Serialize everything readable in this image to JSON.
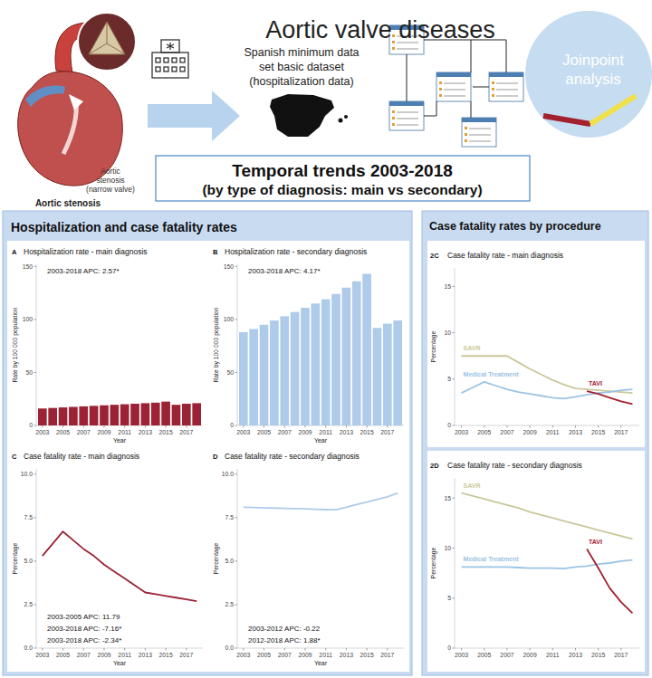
{
  "header": {
    "title": "Aortic valve diseases",
    "illustration_label": [
      "Aortic",
      "stenosis",
      "(narrow valve)"
    ],
    "illustration_caption": "Aortic stenosis",
    "source": [
      "Spanish minimum data",
      "set basic dataset",
      "(hospitalization data)"
    ],
    "method": [
      "Joinpoint",
      "analysis"
    ],
    "banner": [
      "Temporal trends 2003-2018",
      "(by type of diagnosis: main vs secondary)"
    ]
  },
  "panels": [
    {
      "title": "Hospitalization and case fatality rates"
    },
    {
      "title": "Case fatality rates by procedure"
    }
  ],
  "chart_data": [
    {
      "type": "bar",
      "panel_label": "A",
      "title": "Hospitalization rate - main diagnosis",
      "annotations": [
        "2003-2018 APC: 2.57*"
      ],
      "x_label": "Year",
      "y_label": "Rate by 100 000 population",
      "x": [
        2003,
        2004,
        2005,
        2006,
        2007,
        2008,
        2009,
        2010,
        2011,
        2012,
        2013,
        2014,
        2015,
        2016,
        2017,
        2018
      ],
      "values": [
        16,
        16.5,
        17,
        17.5,
        18,
        18.5,
        19,
        19.5,
        20,
        20.5,
        21,
        21.5,
        22.5,
        19.5,
        20.5,
        21
      ],
      "color": "#9b2335",
      "xlim": [
        2002.4,
        2018.6
      ],
      "ylim": [
        0,
        152
      ],
      "yticks": [
        0,
        50,
        100,
        150
      ],
      "xticks": [
        2003,
        2005,
        2007,
        2009,
        2011,
        2013,
        2015,
        2017
      ]
    },
    {
      "type": "bar",
      "panel_label": "B",
      "title": "Hospitalization rate - secondary diagnosis",
      "annotations": [
        "2003-2018 APC: 4.17*"
      ],
      "x_label": "Year",
      "y_label": "Rate by 100 000 population",
      "x": [
        2003,
        2004,
        2005,
        2006,
        2007,
        2008,
        2009,
        2010,
        2011,
        2012,
        2013,
        2014,
        2015,
        2016,
        2017,
        2018
      ],
      "values": [
        88,
        91,
        95,
        99,
        103,
        107,
        111,
        115,
        119,
        124,
        130,
        136,
        143,
        92,
        96,
        99
      ],
      "color": "#aecbea",
      "xlim": [
        2002.4,
        2018.6
      ],
      "ylim": [
        0,
        152
      ],
      "yticks": [
        0,
        50,
        100,
        150
      ],
      "xticks": [
        2003,
        2005,
        2007,
        2009,
        2011,
        2013,
        2015,
        2017
      ]
    },
    {
      "type": "line",
      "panel_label": "C",
      "title": "Case fatality rate - main diagnosis",
      "annotations": [
        "2003-2005 APC: 11.79",
        "2003-2018 APC: -7.16*",
        "2003-2018 APC: -2.34*"
      ],
      "x_label": "Year",
      "y_label": "Percentage",
      "x": [
        2003,
        2004,
        2005,
        2006,
        2007,
        2008,
        2009,
        2010,
        2011,
        2012,
        2013,
        2014,
        2015,
        2016,
        2017,
        2018
      ],
      "values": [
        5.3,
        6.0,
        6.7,
        6.2,
        5.7,
        5.3,
        4.8,
        4.4,
        4.0,
        3.6,
        3.2,
        3.1,
        3.0,
        2.9,
        2.8,
        2.7
      ],
      "color": "#9b2335",
      "xlim": [
        2002.4,
        2018.6
      ],
      "ylim": [
        0,
        10.3
      ],
      "yticks": [
        {
          "value": 0,
          "label": "0.0"
        },
        {
          "value": 2.5,
          "label": "2.5"
        },
        {
          "value": 5,
          "label": "5.0"
        },
        {
          "value": 7.5,
          "label": "7.5"
        },
        {
          "value": 10,
          "label": "10.0"
        }
      ],
      "xticks": [
        2003,
        2005,
        2007,
        2009,
        2011,
        2013,
        2015,
        2017
      ]
    },
    {
      "type": "line",
      "panel_label": "D",
      "title": "Case fatality rate - secondary diagnosis",
      "annotations": [
        "2003-2012 APC: -0.22",
        "2012-2018 APC: 1.88*"
      ],
      "x_label": "Year",
      "y_label": "Percentage",
      "x": [
        2003,
        2004,
        2005,
        2006,
        2007,
        2008,
        2009,
        2010,
        2011,
        2012,
        2013,
        2014,
        2015,
        2016,
        2017,
        2018
      ],
      "values": [
        8.1,
        8.08,
        8.06,
        8.05,
        8.03,
        8.02,
        8.0,
        7.98,
        7.96,
        7.95,
        8.1,
        8.25,
        8.4,
        8.55,
        8.7,
        8.9
      ],
      "color": "#aecbea",
      "xlim": [
        2002.4,
        2018.6
      ],
      "ylim": [
        0,
        10.3
      ],
      "yticks": [
        {
          "value": 0,
          "label": "0.0"
        },
        {
          "value": 2.5,
          "label": "2.5"
        },
        {
          "value": 5,
          "label": "5.0"
        },
        {
          "value": 7.5,
          "label": "7.5"
        },
        {
          "value": 10,
          "label": "10.0"
        }
      ],
      "xticks": [
        2003,
        2005,
        2007,
        2009,
        2011,
        2013,
        2015,
        2017
      ]
    },
    {
      "type": "line",
      "panel_label": "2C",
      "title": "Case fatality rate - main diagnosis",
      "y_label": "Percentage",
      "x": [
        2003,
        2004,
        2005,
        2006,
        2007,
        2008,
        2009,
        2010,
        2011,
        2012,
        2013,
        2014,
        2015,
        2016,
        2017,
        2018
      ],
      "series": [
        {
          "name": "SAVR",
          "color": "#c9c89b",
          "values": [
            7.5,
            7.5,
            7.5,
            7.5,
            7.5,
            6.8,
            6.1,
            5.5,
            4.9,
            4.4,
            4.0,
            3.9,
            3.8,
            3.7,
            3.6,
            3.5
          ]
        },
        {
          "name": "Medical Treatment",
          "color": "#9cc3e4",
          "values": [
            3.5,
            4.1,
            4.7,
            4.3,
            3.9,
            3.6,
            3.4,
            3.2,
            3.0,
            2.9,
            3.1,
            3.3,
            3.5,
            3.6,
            3.8,
            3.9
          ]
        },
        {
          "name": "TAVI",
          "color": "#a3202f",
          "values": [
            null,
            null,
            null,
            null,
            null,
            null,
            null,
            null,
            null,
            null,
            null,
            3.7,
            3.4,
            3.0,
            2.6,
            2.3
          ]
        }
      ],
      "xlim": [
        2002.4,
        2018.6
      ],
      "ylim": [
        0,
        17
      ],
      "yticks": [
        0,
        5,
        10,
        15
      ],
      "xticks": [
        2003,
        2005,
        2007,
        2009,
        2011,
        2013,
        2015,
        2017
      ]
    },
    {
      "type": "line",
      "panel_label": "2D",
      "title": "Case fatality rate - secondary diagnosis",
      "y_label": "Percentage",
      "x": [
        2003,
        2004,
        2005,
        2006,
        2007,
        2008,
        2009,
        2010,
        2011,
        2012,
        2013,
        2014,
        2015,
        2016,
        2017,
        2018
      ],
      "series": [
        {
          "name": "SAVR",
          "color": "#c9c89b",
          "values": [
            15.5,
            15.2,
            14.9,
            14.6,
            14.3,
            14.0,
            13.6,
            13.3,
            13.0,
            12.7,
            12.4,
            12.1,
            11.8,
            11.5,
            11.2,
            10.9
          ]
        },
        {
          "name": "Medical Treatment",
          "color": "#9cc3e4",
          "values": [
            8.1,
            8.1,
            8.1,
            8.1,
            8.1,
            8.05,
            8.0,
            8.0,
            8.0,
            7.95,
            8.1,
            8.2,
            8.4,
            8.5,
            8.7,
            8.8
          ]
        },
        {
          "name": "TAVI",
          "color": "#a3202f",
          "values": [
            null,
            null,
            null,
            null,
            null,
            null,
            null,
            null,
            null,
            null,
            null,
            9.9,
            8.0,
            6.0,
            4.6,
            3.5
          ]
        }
      ],
      "xlim": [
        2002.4,
        2018.6
      ],
      "ylim": [
        0,
        17
      ],
      "yticks": [
        0,
        5,
        10,
        15
      ],
      "xticks": [
        2003,
        2005,
        2007,
        2009,
        2011,
        2013,
        2015,
        2017
      ]
    }
  ]
}
